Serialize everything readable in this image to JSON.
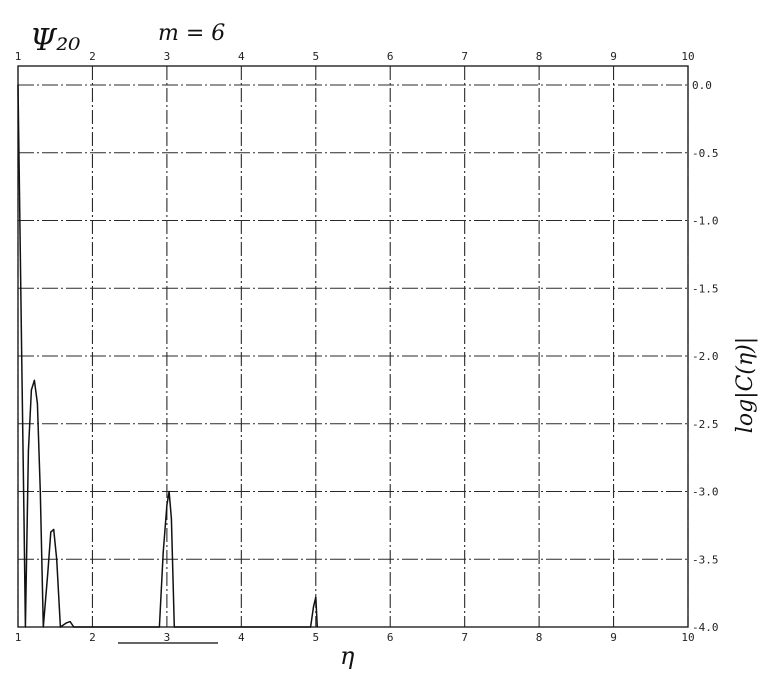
{
  "chart_data": {
    "type": "line",
    "title": "Ψ₂₀",
    "subtitle": "m = 6",
    "xlabel": "η",
    "ylabel": "log|C(η)|",
    "xlim": [
      1,
      10
    ],
    "ylim": [
      -4.0,
      0.0
    ],
    "x_ticks": [
      1,
      2,
      3,
      4,
      5,
      6,
      7,
      8,
      9,
      10
    ],
    "y_ticks": [
      0.0,
      -0.5,
      -1.0,
      -1.5,
      -2.0,
      -2.5,
      -3.0,
      -3.5,
      -4.0
    ],
    "x_tick_labels": [
      "1",
      "2",
      "3",
      "4",
      "5",
      "6",
      "7",
      "8",
      "9",
      "10"
    ],
    "y_tick_labels": [
      "0.0",
      "-0.5",
      "-1.0",
      "-1.5",
      "-2.0",
      "-2.5",
      "-3.0",
      "-3.5",
      "-4.0"
    ],
    "grid": true,
    "series": [
      {
        "values": [
          [
            1.0,
            0.0
          ],
          [
            1.02,
            -0.8
          ],
          [
            1.05,
            -2.0
          ],
          [
            1.08,
            -3.2
          ],
          [
            1.1,
            -4.0
          ],
          [
            1.14,
            -2.7
          ],
          [
            1.18,
            -2.25
          ],
          [
            1.22,
            -2.18
          ],
          [
            1.26,
            -2.35
          ],
          [
            1.3,
            -3.0
          ],
          [
            1.34,
            -4.0
          ],
          [
            1.4,
            -3.6
          ],
          [
            1.44,
            -3.3
          ],
          [
            1.48,
            -3.28
          ],
          [
            1.52,
            -3.5
          ],
          [
            1.57,
            -4.0
          ],
          [
            1.65,
            -3.97
          ],
          [
            1.7,
            -3.96
          ],
          [
            1.75,
            -4.0
          ],
          [
            2.9,
            -4.0
          ],
          [
            2.95,
            -3.45
          ],
          [
            3.0,
            -3.1
          ],
          [
            3.03,
            -3.0
          ],
          [
            3.06,
            -3.2
          ],
          [
            3.1,
            -4.0
          ],
          [
            4.93,
            -4.0
          ],
          [
            4.97,
            -3.85
          ],
          [
            5.0,
            -3.78
          ],
          [
            5.02,
            -4.0
          ]
        ]
      }
    ]
  }
}
